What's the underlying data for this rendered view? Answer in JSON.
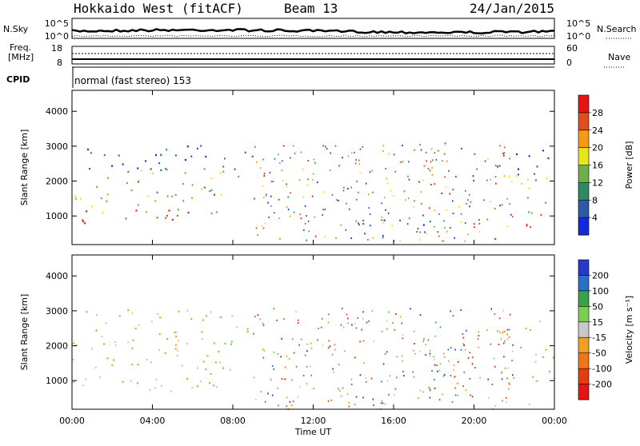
{
  "header": {
    "station": "Hokkaido West (fitACF)",
    "beam": "Beam 13",
    "date": "24/Jan/2015"
  },
  "noise_panel": {
    "left_label": "N.Sky",
    "right_label": "N.Search",
    "left_ticks": [
      "10^5",
      "10^0"
    ],
    "right_ticks": [
      "10^5",
      "10^0"
    ]
  },
  "freq_panel": {
    "left_label_1": "Freq.",
    "left_label_2": "[MHz]",
    "right_label": "Nave",
    "left_ticks": [
      "18",
      "8"
    ],
    "right_ticks": [
      "60",
      "0"
    ]
  },
  "cpid": {
    "label": "CPID",
    "value": "normal (fast stereo) 153"
  },
  "chart_data": [
    {
      "type": "heatmap",
      "name": "power",
      "ylabel": "Slant Range [km]",
      "ylim": [
        180,
        4600
      ],
      "yticks": [
        "1000",
        "2000",
        "3000",
        "4000"
      ],
      "colorbar_label": "Power [dB]",
      "colorbar_ticks": [
        "4",
        "8",
        "12",
        "16",
        "20",
        "24",
        "28"
      ],
      "colorbar_colors": [
        "#1428dc",
        "#2d5aa8",
        "#2e8a62",
        "#6ab04c",
        "#e6e61e",
        "#f59a14",
        "#e0501e",
        "#e61414"
      ],
      "regions": [
        {
          "x0": 0.0,
          "x1": 6.5,
          "y0": 700,
          "y1": 1200,
          "level": 6
        },
        {
          "x0": 0.0,
          "x1": 7.5,
          "y0": 1100,
          "y1": 1700,
          "level": 4
        },
        {
          "x0": 0.0,
          "x1": 8.5,
          "y0": 1600,
          "y1": 2400,
          "level": 3
        },
        {
          "x0": 0.5,
          "x1": 9.5,
          "y0": 2300,
          "y1": 3050,
          "level": 1
        },
        {
          "x0": 14.5,
          "x1": 18.5,
          "y0": 2400,
          "y1": 3050,
          "level": 3
        },
        {
          "x0": 13.5,
          "x1": 19.5,
          "y0": 750,
          "y1": 900,
          "level": 1
        },
        {
          "x0": 21.5,
          "x1": 24.0,
          "y0": 700,
          "y1": 1100,
          "level": 6
        },
        {
          "x0": 21.0,
          "x1": 24.0,
          "y0": 1100,
          "y1": 2200,
          "level": 3
        },
        {
          "x0": 21.0,
          "x1": 24.0,
          "y0": 2200,
          "y1": 3050,
          "level": 1
        }
      ]
    },
    {
      "type": "heatmap",
      "name": "velocity",
      "ylabel": "Slant Range [km]",
      "ylim": [
        180,
        4600
      ],
      "yticks": [
        "1000",
        "2000",
        "3000",
        "4000"
      ],
      "xlabel": "Time UT",
      "xticks": [
        "00:00",
        "04:00",
        "08:00",
        "12:00",
        "16:00",
        "20:00",
        "00:00"
      ],
      "xlim": [
        0,
        24
      ],
      "colorbar_label": "Velocity [m s⁻¹]",
      "colorbar_ticks": [
        "200",
        "100",
        "50",
        "15",
        "-15",
        "-50",
        "-100",
        "-200"
      ],
      "colorbar_colors": [
        "#2838c8",
        "#2870c8",
        "#3aa04a",
        "#7ad04a",
        "#c8c8c8",
        "#f0a020",
        "#f07814",
        "#e63c14",
        "#e61414"
      ],
      "regions": [
        {
          "x0": 0.0,
          "x1": 8.0,
          "y0": 700,
          "y1": 2400,
          "level": 4
        },
        {
          "x0": 0.5,
          "x1": 9.5,
          "y0": 2300,
          "y1": 3050,
          "level": 4
        },
        {
          "x0": 13.5,
          "x1": 14.5,
          "y0": 2800,
          "y1": 3000,
          "level": 8
        },
        {
          "x0": 15.5,
          "x1": 18.0,
          "y0": 2500,
          "y1": 2750,
          "level": 5
        },
        {
          "x0": 14.5,
          "x1": 16.0,
          "y0": 2400,
          "y1": 3000,
          "level": 3
        },
        {
          "x0": 13.0,
          "x1": 19.5,
          "y0": 750,
          "y1": 900,
          "level": 6
        },
        {
          "x0": 9.5,
          "x1": 23.5,
          "y0": 200,
          "y1": 350,
          "level": 5
        },
        {
          "x0": 21.0,
          "x1": 24.0,
          "y0": 700,
          "y1": 2800,
          "level": 4
        }
      ]
    }
  ]
}
